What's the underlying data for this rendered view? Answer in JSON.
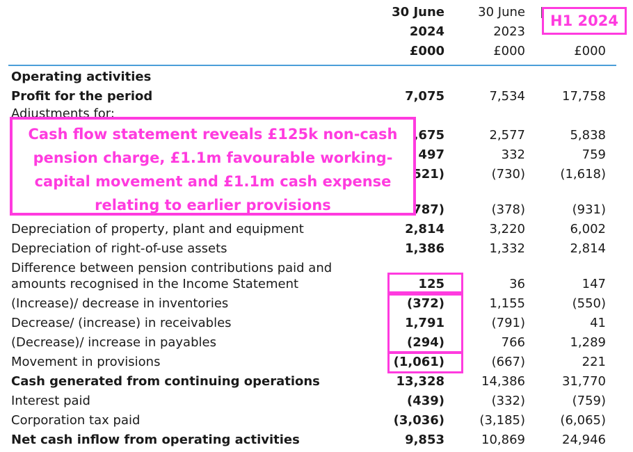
{
  "headers": {
    "col1": {
      "line1": "30 June",
      "line2": "2024",
      "unit": "£000"
    },
    "col2": {
      "line1": "30 June",
      "line2": "2023",
      "unit": "£000"
    },
    "col3": {
      "unit": "£000"
    }
  },
  "badge": "H1 2024",
  "callout": "Cash flow statement reveals £125k non-cash pension charge, £1.1m favourable working-capital movement and £1.1m cash expense relating to earlier provisions",
  "section_title": "Operating activities",
  "adjustments_label": "Adjustments for:",
  "rows": [
    {
      "label": "Profit for the period",
      "v1": "7,075",
      "v2": "7,534",
      "v3": "17,758"
    },
    {
      "label": "",
      "v1": ",675",
      "v2": "2,577",
      "v3": "5,838"
    },
    {
      "label": "",
      "v1": "497",
      "v2": "332",
      "v3": "759"
    },
    {
      "label": "",
      "v1": "(521)",
      "v2": "(730)",
      "v3": "(1,618)"
    },
    {
      "label": "",
      "v1": "(787)",
      "v2": "(378)",
      "v3": "(931)"
    },
    {
      "label": "Depreciation of property, plant and equipment",
      "v1": "2,814",
      "v2": "3,220",
      "v3": "6,002"
    },
    {
      "label": "Depreciation of right-of-use assets",
      "v1": "1,386",
      "v2": "1,332",
      "v3": "2,814"
    },
    {
      "label": "Difference between pension contributions paid and",
      "label2": "amounts recognised in the Income Statement",
      "v1": "125",
      "v2": "36",
      "v3": "147"
    },
    {
      "label": "(Increase)/ decrease in inventories",
      "v1": "(372)",
      "v2": "1,155",
      "v3": "(550)"
    },
    {
      "label": "Decrease/ (increase) in receivables",
      "v1": "1,791",
      "v2": "(791)",
      "v3": "41"
    },
    {
      "label": "(Decrease)/ increase in payables",
      "v1": "(294)",
      "v2": "766",
      "v3": "1,289"
    },
    {
      "label": "Movement in provisions",
      "v1": "(1,061)",
      "v2": "(667)",
      "v3": "221"
    },
    {
      "label": "Cash generated from continuing operations",
      "v1": "13,328",
      "v2": "14,386",
      "v3": "31,770"
    },
    {
      "label": "Interest paid",
      "v1": "(439)",
      "v2": "(332)",
      "v3": "(759)"
    },
    {
      "label": "Corporation tax paid",
      "v1": "(3,036)",
      "v2": "(3,185)",
      "v3": "(6,065)"
    },
    {
      "label": "Net cash inflow from operating activities",
      "v1": "9,853",
      "v2": "10,869",
      "v3": "24,946"
    }
  ],
  "highlight_color": "#ff3bdf",
  "rule_color": "#4a9ed8"
}
